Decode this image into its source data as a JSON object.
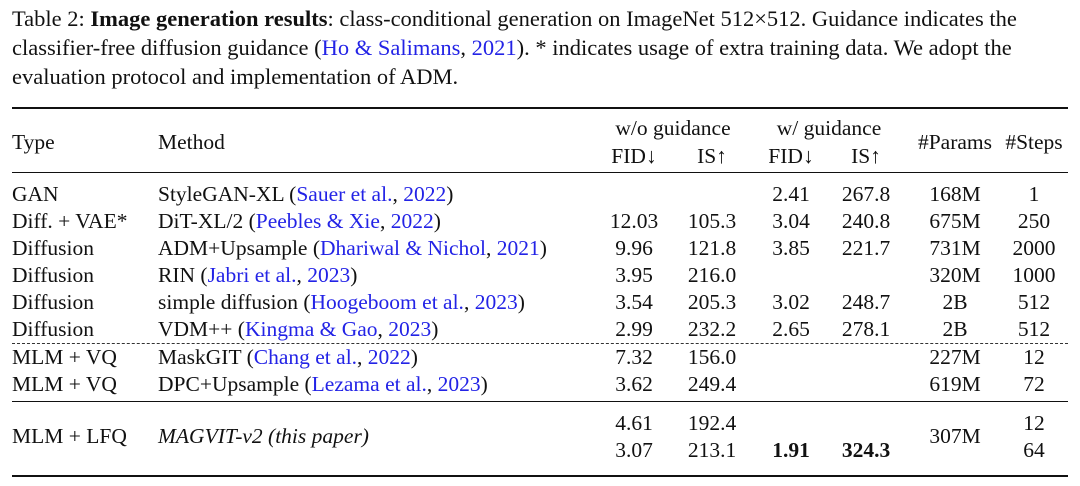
{
  "caption": [
    {
      "text": "Table 2: ",
      "kind": "text"
    },
    {
      "text": "Image generation results",
      "kind": "bold"
    },
    {
      "text": ": class-conditional generation on ImageNet 512×512. Guidance indicates the classifier-free diffusion guidance (",
      "kind": "text"
    },
    {
      "text": "Ho & Salimans",
      "kind": "cite"
    },
    {
      "text": ", ",
      "kind": "text"
    },
    {
      "text": "2021",
      "kind": "cite"
    },
    {
      "text": ").  * indicates usage of extra training data. We adopt the evaluation protocol and implementation of ADM.",
      "kind": "text"
    }
  ],
  "cite_color": "#2323e6",
  "table": {
    "header": {
      "type": "Type",
      "method": "Method",
      "without_guidance": "w/o guidance",
      "with_guidance": "w/ guidance",
      "fid_wo": "FID↓",
      "is_wo": "IS↑",
      "fid_w": "FID↓",
      "is_w": "IS↑",
      "params": "#Params",
      "steps": "#Steps"
    },
    "groups": [
      {
        "rule": "solid",
        "rows": [
          {
            "type": "GAN",
            "method": [
              {
                "text": "StyleGAN-XL (",
                "kind": "text"
              },
              {
                "text": "Sauer et al.",
                "kind": "cite"
              },
              {
                "text": ", ",
                "kind": "text"
              },
              {
                "text": "2022",
                "kind": "cite"
              },
              {
                "text": ")",
                "kind": "text"
              }
            ],
            "cells": {
              "fid_wo": null,
              "is_wo": null,
              "fid_w": "2.41",
              "is_w": "267.8",
              "params": "168M",
              "steps": "1"
            }
          },
          {
            "type": "Diff. + VAE*",
            "method": [
              {
                "text": "DiT-XL/2 (",
                "kind": "text"
              },
              {
                "text": "Peebles & Xie",
                "kind": "cite"
              },
              {
                "text": ", ",
                "kind": "text"
              },
              {
                "text": "2022",
                "kind": "cite"
              },
              {
                "text": ")",
                "kind": "text"
              }
            ],
            "cells": {
              "fid_wo": "12.03",
              "is_wo": "105.3",
              "fid_w": "3.04",
              "is_w": "240.8",
              "params": "675M",
              "steps": "250"
            }
          },
          {
            "type": "Diffusion",
            "method": [
              {
                "text": "ADM+Upsample (",
                "kind": "text"
              },
              {
                "text": "Dhariwal & Nichol",
                "kind": "cite"
              },
              {
                "text": ", ",
                "kind": "text"
              },
              {
                "text": "2021",
                "kind": "cite"
              },
              {
                "text": ")",
                "kind": "text"
              }
            ],
            "cells": {
              "fid_wo": "9.96",
              "is_wo": "121.8",
              "fid_w": "3.85",
              "is_w": "221.7",
              "params": "731M",
              "steps": "2000"
            }
          },
          {
            "type": "Diffusion",
            "method": [
              {
                "text": "RIN (",
                "kind": "text"
              },
              {
                "text": "Jabri et al.",
                "kind": "cite"
              },
              {
                "text": ", ",
                "kind": "text"
              },
              {
                "text": "2023",
                "kind": "cite"
              },
              {
                "text": ")",
                "kind": "text"
              }
            ],
            "cells": {
              "fid_wo": "3.95",
              "is_wo": "216.0",
              "fid_w": null,
              "is_w": null,
              "params": "320M",
              "steps": "1000"
            }
          },
          {
            "type": "Diffusion",
            "method": [
              {
                "text": "simple diffusion (",
                "kind": "text"
              },
              {
                "text": "Hoogeboom et al.",
                "kind": "cite"
              },
              {
                "text": ", ",
                "kind": "text"
              },
              {
                "text": "2023",
                "kind": "cite"
              },
              {
                "text": ")",
                "kind": "text"
              }
            ],
            "cells": {
              "fid_wo": "3.54",
              "is_wo": "205.3",
              "fid_w": "3.02",
              "is_w": "248.7",
              "params": "2B",
              "steps": "512"
            }
          },
          {
            "type": "Diffusion",
            "method": [
              {
                "text": "VDM++ (",
                "kind": "text"
              },
              {
                "text": "Kingma & Gao",
                "kind": "cite"
              },
              {
                "text": ", ",
                "kind": "text"
              },
              {
                "text": "2023",
                "kind": "cite"
              },
              {
                "text": ")",
                "kind": "text"
              }
            ],
            "cells": {
              "fid_wo": "2.99",
              "is_wo": "232.2",
              "fid_w": "2.65",
              "is_w": "278.1",
              "params": "2B",
              "steps": "512"
            }
          }
        ]
      },
      {
        "rule": "dashed",
        "rows": [
          {
            "type": "MLM + VQ",
            "method": [
              {
                "text": "MaskGIT (",
                "kind": "text"
              },
              {
                "text": "Chang et al.",
                "kind": "cite"
              },
              {
                "text": ", ",
                "kind": "text"
              },
              {
                "text": "2022",
                "kind": "cite"
              },
              {
                "text": ")",
                "kind": "text"
              }
            ],
            "cells": {
              "fid_wo": "7.32",
              "is_wo": "156.0",
              "fid_w": null,
              "is_w": null,
              "params": "227M",
              "steps": "12"
            }
          },
          {
            "type": "MLM + VQ",
            "method": [
              {
                "text": "DPC+Upsample (",
                "kind": "text"
              },
              {
                "text": "Lezama et al.",
                "kind": "cite"
              },
              {
                "text": ", ",
                "kind": "text"
              },
              {
                "text": "2023",
                "kind": "cite"
              },
              {
                "text": ")",
                "kind": "text"
              }
            ],
            "cells": {
              "fid_wo": "3.62",
              "is_wo": "249.4",
              "fid_w": null,
              "is_w": null,
              "params": "619M",
              "steps": "72"
            }
          }
        ]
      },
      {
        "rule": "solid",
        "rows": [
          {
            "type": "MLM + LFQ",
            "method": [
              {
                "text": "MAGVIT-v2 (this paper)",
                "kind": "italic"
              }
            ],
            "params": "307M",
            "subrows": [
              {
                "cells": {
                  "fid_wo": "4.61",
                  "is_wo": "192.4",
                  "fid_w": null,
                  "is_w": null,
                  "steps": "12"
                },
                "bold": []
              },
              {
                "cells": {
                  "fid_wo": "3.07",
                  "is_wo": "213.1",
                  "fid_w": "1.91",
                  "is_w": "324.3",
                  "steps": "64"
                },
                "bold": [
                  "fid_w",
                  "is_w"
                ]
              }
            ]
          }
        ]
      }
    ]
  }
}
